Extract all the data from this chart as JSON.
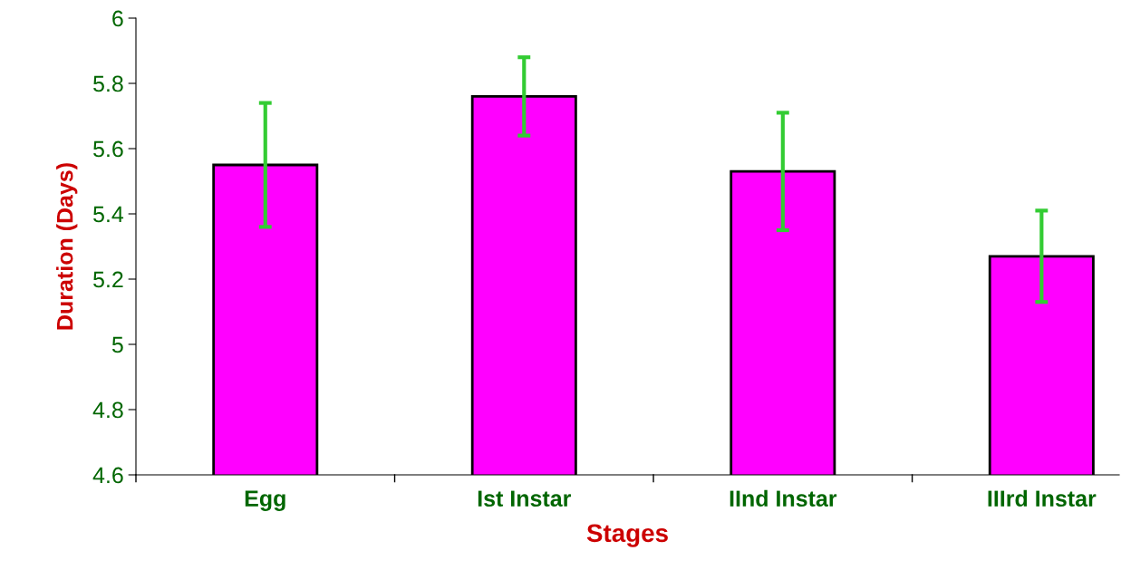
{
  "chart_data": {
    "type": "bar",
    "xlabel": "Stages",
    "ylabel": "Duration (Days)",
    "categories": [
      "Egg",
      "Ist Instar",
      "IInd Instar",
      "IIIrd Instar"
    ],
    "values": [
      5.55,
      5.76,
      5.53,
      5.27
    ],
    "errors": [
      0.19,
      0.12,
      0.18,
      0.14
    ],
    "color": "#ff00ff",
    "ylim": [
      4.6,
      6
    ],
    "yticks": [
      4.6,
      4.8,
      5,
      5.2,
      5.4,
      5.6,
      5.8,
      6
    ],
    "grid": false,
    "legend": false
  }
}
